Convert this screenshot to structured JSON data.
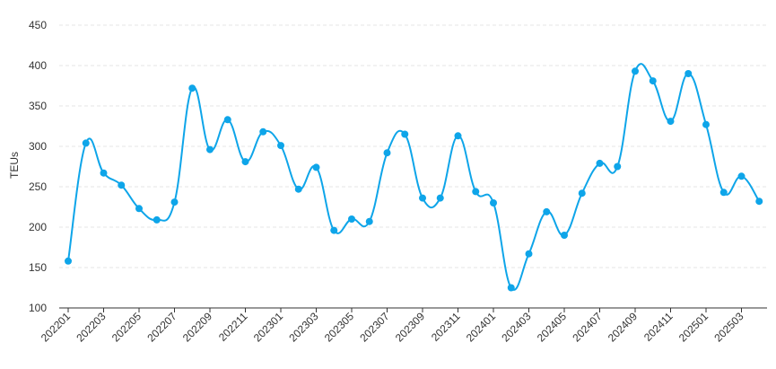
{
  "chart_data": {
    "type": "line",
    "title": "",
    "xlabel": "",
    "ylabel": "TEUs",
    "ylim": [
      100,
      450
    ],
    "yticks": [
      100,
      150,
      200,
      250,
      300,
      350,
      400,
      450
    ],
    "grid": true,
    "legend": "none",
    "categories": [
      "202201",
      "202202",
      "202203",
      "202204",
      "202205",
      "202206",
      "202207",
      "202208",
      "202209",
      "202210",
      "202211",
      "202212",
      "202301",
      "202302",
      "202303",
      "202304",
      "202305",
      "202306",
      "202307",
      "202308",
      "202309",
      "202310",
      "202311",
      "202312",
      "202401",
      "202402",
      "202403",
      "202404",
      "202405",
      "202406",
      "202407",
      "202408",
      "202409",
      "202410",
      "202411",
      "202412",
      "202501",
      "202502",
      "202503",
      "202504"
    ],
    "x_tick_labels": [
      "202201",
      "202203",
      "202205",
      "202207",
      "202209",
      "202211",
      "202301",
      "202303",
      "202305",
      "202307",
      "202309",
      "202311",
      "202401",
      "202403",
      "202405",
      "202407",
      "202409",
      "202411",
      "202501",
      "202503"
    ],
    "series": [
      {
        "values": [
          158,
          304,
          267,
          252,
          223,
          209,
          231,
          372,
          296,
          333,
          281,
          318,
          301,
          247,
          274,
          196,
          210,
          207,
          292,
          315,
          236,
          236,
          313,
          244,
          230,
          125,
          167,
          219,
          190,
          242,
          279,
          275,
          393,
          381,
          331,
          390,
          327,
          243,
          263,
          232
        ],
        "color": "#0ea5e9"
      }
    ]
  }
}
